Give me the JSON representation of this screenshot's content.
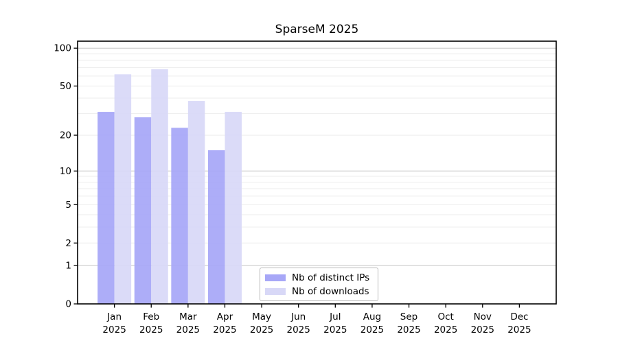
{
  "title": "SparseM 2025",
  "chart_data": {
    "type": "bar",
    "title": "SparseM 2025",
    "categories": [
      "Jan 2025",
      "Feb 2025",
      "Mar 2025",
      "Apr 2025",
      "May 2025",
      "Jun 2025",
      "Jul 2025",
      "Aug 2025",
      "Sep 2025",
      "Oct 2025",
      "Nov 2025",
      "Dec 2025"
    ],
    "series": [
      {
        "name": "Nb of distinct IPs",
        "color": "#a7a7f7",
        "values": [
          31,
          28,
          23,
          15,
          0,
          0,
          0,
          0,
          0,
          0,
          0,
          0
        ]
      },
      {
        "name": "Nb of downloads",
        "color": "#d8d8f7",
        "values": [
          62,
          68,
          38,
          31,
          0,
          0,
          0,
          0,
          0,
          0,
          0,
          0
        ]
      }
    ],
    "xlabel": "",
    "ylabel": "",
    "y_scale": "log10(value+1)",
    "ylim": [
      0,
      113
    ],
    "y_ticks": [
      0,
      1,
      2,
      5,
      10,
      20,
      50,
      100
    ],
    "y_major_gridlines": [
      1,
      10,
      100
    ],
    "y_minor_gridlines": [
      2,
      3,
      4,
      5,
      6,
      7,
      8,
      9,
      20,
      30,
      40,
      50,
      60,
      70,
      80,
      90
    ],
    "grid": "horizontal",
    "legend_position": "bottom-center-inside"
  },
  "colors": {
    "bar_distinct_ips": "#a7a7f7",
    "bar_downloads": "#d8d8f7",
    "major_gridline": "#c6c6c6",
    "minor_gridline": "#ededed",
    "axis": "#000000",
    "text": "#000000",
    "legend_border": "#b9b9b9",
    "background": "#ffffff"
  }
}
